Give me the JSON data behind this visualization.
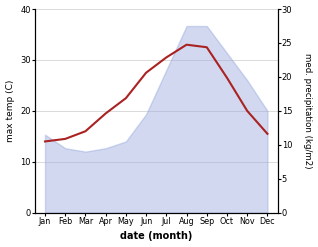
{
  "months": [
    "Jan",
    "Feb",
    "Mar",
    "Apr",
    "May",
    "Jun",
    "Jul",
    "Aug",
    "Sep",
    "Oct",
    "Nov",
    "Dec"
  ],
  "month_x": [
    0,
    1,
    2,
    3,
    4,
    5,
    6,
    7,
    8,
    9,
    10,
    11
  ],
  "temp_max": [
    14.0,
    14.5,
    16.0,
    19.5,
    22.5,
    27.5,
    30.5,
    33.0,
    32.5,
    26.5,
    20.0,
    15.5
  ],
  "precip": [
    11.5,
    9.5,
    9.0,
    9.5,
    10.5,
    14.5,
    21.0,
    27.5,
    27.5,
    23.5,
    19.5,
    15.0
  ],
  "temp_color": "#aa2222",
  "precip_color": "#99aadd",
  "precip_fill_alpha": 0.45,
  "left_ylim": [
    0,
    40
  ],
  "right_ylim": [
    0,
    30
  ],
  "left_yticks": [
    0,
    10,
    20,
    30,
    40
  ],
  "right_yticks": [
    0,
    5,
    10,
    15,
    20,
    25,
    30
  ],
  "xlabel": "date (month)",
  "ylabel_left": "max temp (C)",
  "ylabel_right": "med. precipitation (kg/m2)",
  "bg_color": "#ffffff",
  "grid_color": "#cccccc"
}
